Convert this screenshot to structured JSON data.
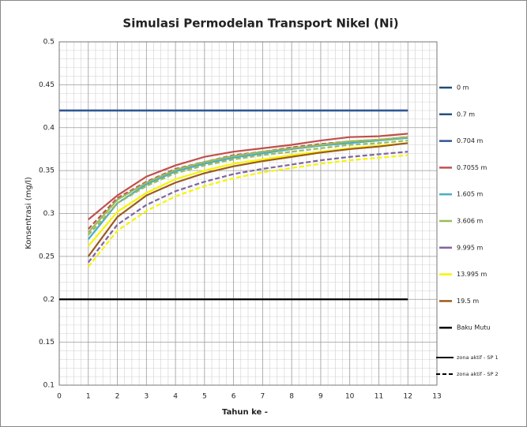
{
  "chart_data": {
    "type": "line",
    "title": "Simulasi Permodelan Transport Nikel (Ni)",
    "x_label": "Tahun ke -",
    "y_label": "Konsentrasi (mg/l)",
    "x": [
      0,
      1,
      2,
      3,
      4,
      5,
      6,
      7,
      8,
      9,
      10,
      11,
      12
    ],
    "xlim": [
      0,
      13
    ],
    "xticks": [
      0,
      1,
      2,
      3,
      4,
      5,
      6,
      7,
      8,
      9,
      10,
      11,
      12,
      13
    ],
    "ylim": [
      0.1,
      0.5
    ],
    "yticks": [
      0.1,
      0.15,
      0.2,
      0.25,
      0.3,
      0.35,
      0.4,
      0.45,
      0.5
    ],
    "grid": true,
    "legend": "right",
    "series": [
      {
        "name": "0 m",
        "color": "#1f4e79",
        "values": [
          0.42,
          0.42,
          0.42,
          0.42,
          0.42,
          0.42,
          0.42,
          0.42,
          0.42,
          0.42,
          0.42,
          0.42,
          0.42
        ],
        "values_sp2": [
          null,
          null,
          null,
          null,
          null,
          null,
          null,
          null,
          null,
          null,
          null,
          null,
          null
        ]
      },
      {
        "name": "0.7 m",
        "color": "#254f7e",
        "values": [
          0.42,
          0.42,
          0.42,
          0.42,
          0.42,
          0.42,
          0.42,
          0.42,
          0.42,
          0.42,
          0.42,
          0.42,
          0.42
        ],
        "values_sp2": [
          null,
          null,
          null,
          null,
          null,
          null,
          null,
          null,
          null,
          null,
          null,
          null,
          null
        ]
      },
      {
        "name": "0.704 m",
        "color": "#2f5597",
        "values": [
          0.42,
          0.42,
          0.42,
          0.42,
          0.42,
          0.42,
          0.42,
          0.42,
          0.42,
          0.42,
          0.42,
          0.42,
          0.42
        ],
        "values_sp2": [
          null,
          null,
          null,
          null,
          null,
          null,
          null,
          null,
          null,
          null,
          null,
          null,
          null
        ]
      },
      {
        "name": "0.7055 m",
        "color": "#c0504d",
        "values": [
          null,
          0.293,
          0.321,
          0.343,
          0.356,
          0.366,
          0.372,
          0.376,
          0.38,
          0.385,
          0.389,
          0.39,
          0.393
        ],
        "values_sp2": [
          null,
          0.282,
          0.318,
          0.337,
          0.352,
          0.36,
          0.368,
          0.372,
          0.377,
          0.381,
          0.384,
          0.386,
          0.389
        ]
      },
      {
        "name": "1.605 m",
        "color": "#4bacc6",
        "values": [
          null,
          0.27,
          0.312,
          0.334,
          0.349,
          0.358,
          0.365,
          0.37,
          0.375,
          0.379,
          0.382,
          0.385,
          0.388
        ],
        "values_sp2": [
          null,
          null,
          null,
          null,
          null,
          null,
          null,
          null,
          null,
          null,
          null,
          null,
          null
        ]
      },
      {
        "name": "3.606 m",
        "color": "#9bbb59",
        "values": [
          null,
          0.278,
          0.316,
          0.336,
          0.351,
          0.36,
          0.367,
          0.372,
          0.376,
          0.38,
          0.384,
          0.386,
          0.389
        ],
        "values_sp2": [
          null,
          0.275,
          0.312,
          0.332,
          0.347,
          0.356,
          0.363,
          0.368,
          0.372,
          0.376,
          0.38,
          0.382,
          0.385
        ]
      },
      {
        "name": "9.995 m",
        "color": "#8064a2",
        "values": [
          null,
          null,
          null,
          null,
          null,
          null,
          null,
          null,
          null,
          null,
          null,
          null,
          null
        ],
        "values_sp2": [
          null,
          0.243,
          0.287,
          0.31,
          0.326,
          0.337,
          0.346,
          0.352,
          0.357,
          0.362,
          0.366,
          0.369,
          0.372
        ]
      },
      {
        "name": "13.995 m",
        "color": "#f5f500",
        "values": [
          null,
          0.262,
          0.302,
          0.324,
          0.34,
          0.35,
          0.358,
          0.363,
          0.368,
          0.372,
          0.376,
          0.379,
          0.382
        ],
        "values_sp2": [
          null,
          0.238,
          0.28,
          0.303,
          0.32,
          0.332,
          0.341,
          0.348,
          0.353,
          0.358,
          0.362,
          0.365,
          0.368
        ]
      },
      {
        "name": "19.5 m",
        "color": "#9c5a1a",
        "values": [
          null,
          0.25,
          0.296,
          0.321,
          0.336,
          0.347,
          0.355,
          0.361,
          0.366,
          0.371,
          0.375,
          0.378,
          0.382
        ],
        "values_sp2": [
          null,
          null,
          null,
          null,
          null,
          null,
          null,
          null,
          null,
          null,
          null,
          null,
          null
        ]
      },
      {
        "name": "Baku Mutu",
        "color": "#000000",
        "values": [
          0.2,
          0.2,
          0.2,
          0.2,
          0.2,
          0.2,
          0.2,
          0.2,
          0.2,
          0.2,
          0.2,
          0.2,
          0.2
        ],
        "values_sp2": [
          null,
          null,
          null,
          null,
          null,
          null,
          null,
          null,
          null,
          null,
          null,
          null,
          null
        ]
      }
    ],
    "line_styles": [
      {
        "label": "zona aktif - SP 1",
        "dashed": false
      },
      {
        "label": "zona aktif - SP 2",
        "dashed": true
      }
    ]
  }
}
